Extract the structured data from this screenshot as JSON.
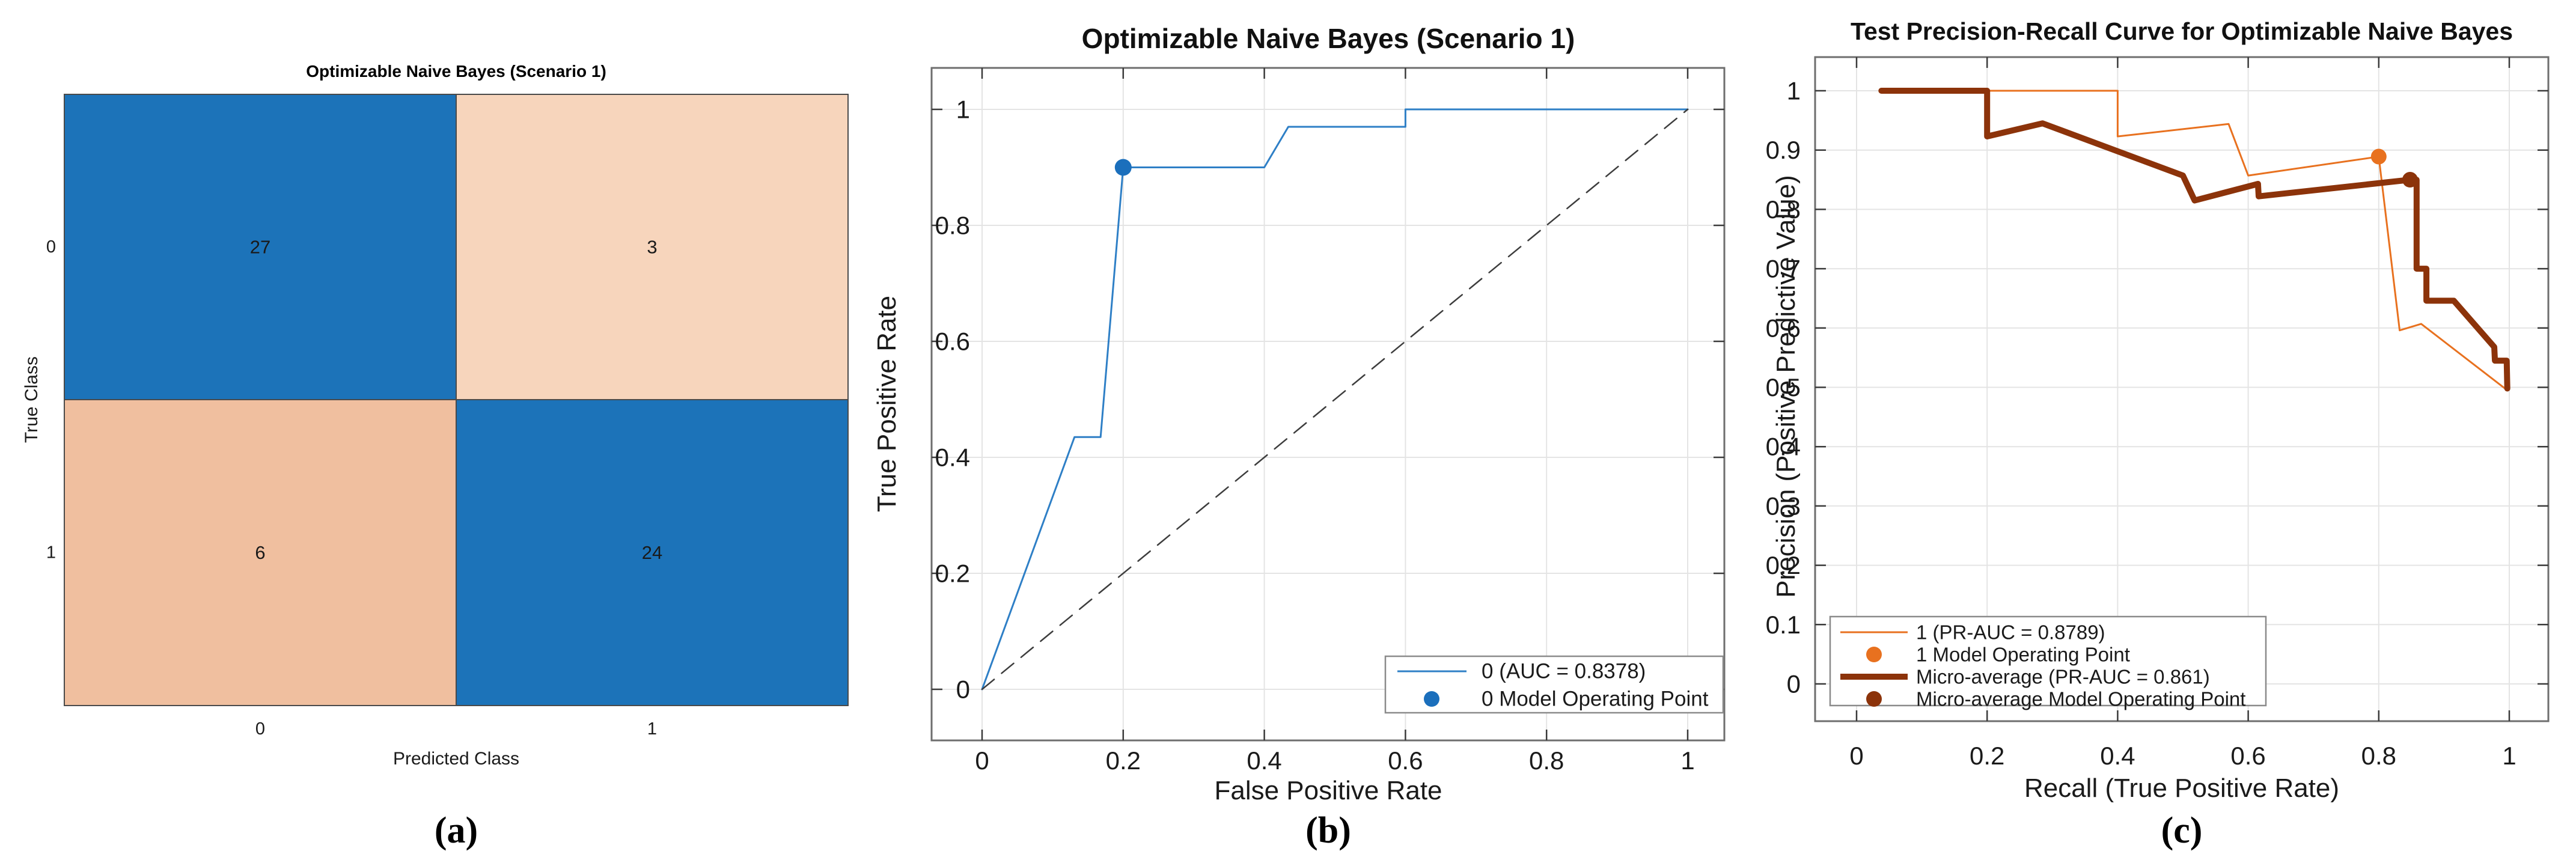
{
  "figure": {
    "background": "#ffffff",
    "panels": [
      {
        "id": "a",
        "caption": "(a)"
      },
      {
        "id": "b",
        "caption": "(b)"
      },
      {
        "id": "c",
        "caption": "(c)"
      }
    ]
  },
  "colors": {
    "matrix_blue": "#1c73b9",
    "matrix_peach_light": "#f7d5bc",
    "matrix_peach": "#f0bf9f",
    "roc_line_blue": "#2e7fc6",
    "roc_dot_blue": "#1b6fbc",
    "pr_orange": "#e8711f",
    "pr_brown": "#8c330a",
    "grid": "#e4e4e4",
    "axes_box": "#6e6e6e",
    "tick": "#3a3a3a",
    "dashed_diagonal": "#3d3d3d"
  },
  "chart_data": [
    {
      "panel": "a",
      "type": "heatmap",
      "title": "Optimizable Naive Bayes (Scenario 1)",
      "xlabel": "Predicted Class",
      "ylabel": "True Class",
      "x_categories": [
        "0",
        "1"
      ],
      "y_categories": [
        "0",
        "1"
      ],
      "values": [
        [
          27,
          3
        ],
        [
          6,
          24
        ]
      ],
      "cell_colors": [
        [
          "#1c73b9",
          "#f7d5bc"
        ],
        [
          "#f0bf9f",
          "#1c73b9"
        ]
      ],
      "value_colors": [
        [
          "#ffffff",
          "#000000"
        ],
        [
          "#000000",
          "#ffffff"
        ]
      ]
    },
    {
      "panel": "b",
      "type": "line",
      "title": "Optimizable Naive Bayes (Scenario 1)",
      "xlabel": "False Positive Rate",
      "ylabel": "True Positive Rate",
      "xlim": [
        0,
        1
      ],
      "ylim": [
        0,
        1
      ],
      "xticks": [
        0,
        0.2,
        0.4,
        0.6,
        0.8,
        1
      ],
      "yticks": [
        0,
        0.2,
        0.4,
        0.6,
        0.8,
        1
      ],
      "grid": true,
      "series": [
        {
          "name": "ROC class 0",
          "color": "#2e7fc6",
          "width": 3,
          "points": [
            [
              0,
              0
            ],
            [
              0.131,
              0.435
            ],
            [
              0.168,
              0.435
            ],
            [
              0.2,
              0.9
            ],
            [
              0.4,
              0.9
            ],
            [
              0.434,
              0.97
            ],
            [
              0.6,
              0.97
            ],
            [
              0.6,
              1
            ],
            [
              1,
              1
            ]
          ]
        },
        {
          "name": "chance diagonal",
          "color": "#3d3d3d",
          "width": 2.5,
          "dash": "26 16",
          "points": [
            [
              0,
              0
            ],
            [
              1,
              1
            ]
          ]
        }
      ],
      "markers": [
        {
          "name": "0 Model Operating Point",
          "color": "#1b6fbc",
          "point": [
            0.2,
            0.9
          ],
          "r": 14
        }
      ],
      "legend": {
        "position": "lower right",
        "entries": [
          {
            "label": "0 (AUC = 0.8378)",
            "sample": "line",
            "color": "#2e7fc6",
            "width": 3
          },
          {
            "label": "0 Model Operating Point",
            "sample": "dot",
            "color": "#1b6fbc"
          }
        ]
      }
    },
    {
      "panel": "c",
      "type": "line",
      "title": "Test Precision-Recall Curve for Optimizable Naive Bayes",
      "xlabel": "Recall (True Positive Rate)",
      "ylabel": "Precision (Positive Predictive Value)",
      "xlim": [
        0,
        1
      ],
      "ylim": [
        0,
        1
      ],
      "xticks": [
        0,
        0.2,
        0.4,
        0.6,
        0.8,
        1
      ],
      "yticks": [
        0,
        0.1,
        0.2,
        0.3,
        0.4,
        0.5,
        0.6,
        0.7,
        0.8,
        0.9,
        1
      ],
      "grid": true,
      "series": [
        {
          "name": "class 1 PR curve",
          "color": "#e8711f",
          "width": 3,
          "points": [
            [
              0.038,
              1
            ],
            [
              0.4,
              1
            ],
            [
              0.4,
              0.923
            ],
            [
              0.57,
              0.944
            ],
            [
              0.6,
              0.857
            ],
            [
              0.8,
              0.889
            ],
            [
              0.832,
              0.596
            ],
            [
              0.865,
              0.607
            ],
            [
              0.997,
              0.495
            ]
          ]
        },
        {
          "name": "micro-average PR curve",
          "color": "#8c330a",
          "width": 10,
          "points": [
            [
              0.038,
              1
            ],
            [
              0.2,
              1
            ],
            [
              0.2,
              0.923
            ],
            [
              0.285,
              0.945
            ],
            [
              0.5,
              0.857
            ],
            [
              0.518,
              0.815
            ],
            [
              0.615,
              0.843
            ],
            [
              0.616,
              0.822
            ],
            [
              0.848,
              0.85
            ],
            [
              0.858,
              0.85
            ],
            [
              0.858,
              0.7
            ],
            [
              0.873,
              0.7
            ],
            [
              0.873,
              0.646
            ],
            [
              0.915,
              0.646
            ],
            [
              0.977,
              0.568
            ],
            [
              0.978,
              0.545
            ],
            [
              0.996,
              0.545
            ],
            [
              0.997,
              0.498
            ]
          ]
        }
      ],
      "markers": [
        {
          "name": "1 Model Operating Point",
          "color": "#e8711f",
          "point": [
            0.8,
            0.889
          ],
          "r": 13
        },
        {
          "name": "Micro-average Model Operating Point",
          "color": "#8c330a",
          "point": [
            0.848,
            0.85
          ],
          "r": 13
        }
      ],
      "legend": {
        "position": "lower left",
        "entries": [
          {
            "label": "1 (PR-AUC = 0.8789)",
            "sample": "line",
            "color": "#e8711f",
            "width": 3
          },
          {
            "label": "1 Model Operating Point",
            "sample": "dot",
            "color": "#e8711f"
          },
          {
            "label": "Micro-average (PR-AUC = 0.861)",
            "sample": "line",
            "color": "#8c330a",
            "width": 10
          },
          {
            "label": "Micro-average Model Operating Point",
            "sample": "dot",
            "color": "#8c330a"
          }
        ]
      }
    }
  ]
}
